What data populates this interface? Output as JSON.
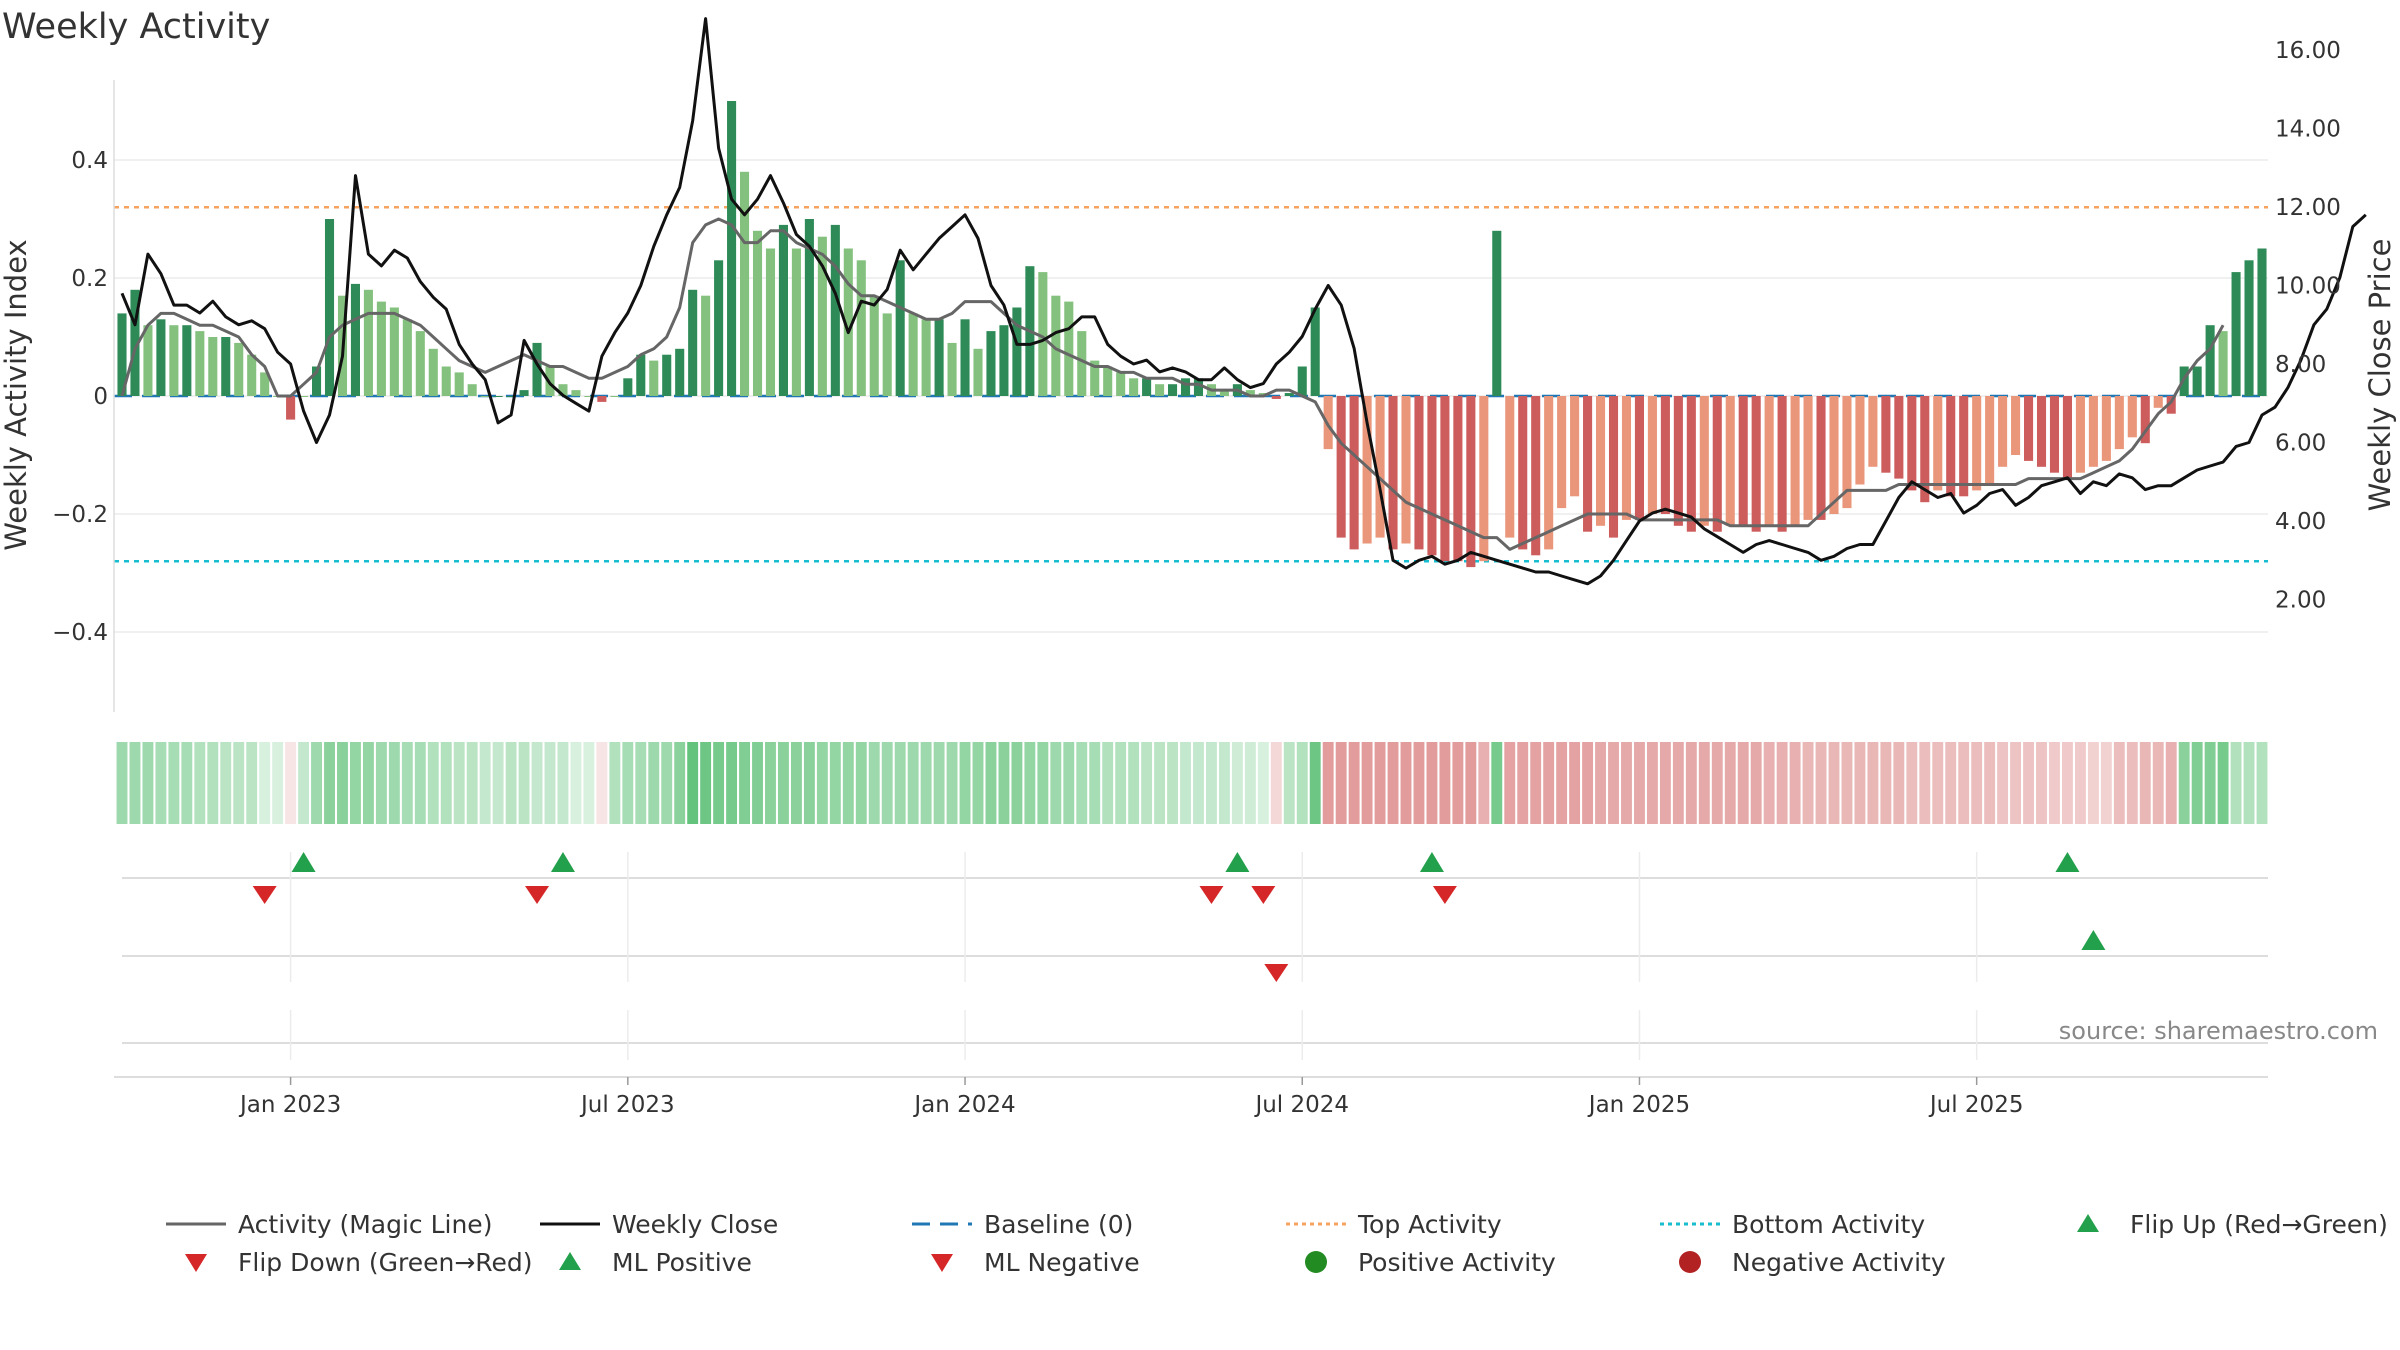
{
  "chart_data": {
    "type": "bar",
    "title": "Weekly Activity",
    "ylabel_left": "Weekly Activity Index",
    "ylabel_right": "Weekly Close Price",
    "source": "source: sharemaestro.com",
    "ylim_left": [
      -0.54,
      0.54
    ],
    "ylim_right": [
      1.2,
      17.0
    ],
    "yticks_left": [
      {
        "v": 0.4,
        "label": "0.4"
      },
      {
        "v": 0.2,
        "label": "0.2"
      },
      {
        "v": 0,
        "label": "0"
      },
      {
        "v": -0.2,
        "label": "−0.2"
      },
      {
        "v": -0.4,
        "label": "−0.4"
      }
    ],
    "yticks_right": [
      {
        "v": 16,
        "label": "16.00"
      },
      {
        "v": 14,
        "label": "14.00"
      },
      {
        "v": 12,
        "label": "12.00"
      },
      {
        "v": 10,
        "label": "10.00"
      },
      {
        "v": 8,
        "label": "8.00"
      },
      {
        "v": 6,
        "label": "6.00"
      },
      {
        "v": 4,
        "label": "4.00"
      },
      {
        "v": 2,
        "label": "2.00"
      }
    ],
    "x_ticks": [
      {
        "week": 13,
        "label": "Jan 2023"
      },
      {
        "week": 39,
        "label": "Jul 2023"
      },
      {
        "week": 65,
        "label": "Jan 2024"
      },
      {
        "week": 91,
        "label": "Jul 2024"
      },
      {
        "week": 117,
        "label": "Jan 2025"
      },
      {
        "week": 143,
        "label": "Jul 2025"
      }
    ],
    "top_activity": 0.32,
    "bottom_activity": -0.28,
    "activity": [
      0.14,
      0.18,
      0.12,
      0.13,
      0.12,
      0.12,
      0.11,
      0.1,
      0.1,
      0.09,
      0.07,
      0.04,
      0,
      -0.04,
      0,
      0.05,
      0.3,
      0.17,
      0.19,
      0.18,
      0.16,
      0.15,
      0.13,
      0.11,
      0.08,
      0.05,
      0.04,
      0.02,
      0,
      0,
      0,
      0.01,
      0.09,
      0.05,
      0.02,
      0.01,
      0,
      -0.01,
      0,
      0.03,
      0.07,
      0.06,
      0.07,
      0.08,
      0.18,
      0.17,
      0.23,
      0.5,
      0.38,
      0.28,
      0.25,
      0.29,
      0.25,
      0.3,
      0.27,
      0.29,
      0.25,
      0.23,
      0.17,
      0.14,
      0.23,
      0.14,
      0.13,
      0.13,
      0.09,
      0.13,
      0.08,
      0.11,
      0.12,
      0.15,
      0.22,
      0.21,
      0.17,
      0.16,
      0.11,
      0.06,
      0.05,
      0.04,
      0.03,
      0.03,
      0.02,
      0.02,
      0.03,
      0.03,
      0.02,
      0.01,
      0.02,
      0.01,
      0.005,
      -0.005,
      0.005,
      0.05,
      0.15,
      -0.09,
      -0.24,
      -0.26,
      -0.25,
      -0.24,
      -0.26,
      -0.25,
      -0.26,
      -0.27,
      -0.28,
      -0.28,
      -0.29,
      -0.28,
      0.28,
      -0.24,
      -0.26,
      -0.27,
      -0.26,
      -0.19,
      -0.17,
      -0.23,
      -0.22,
      -0.24,
      -0.21,
      -0.21,
      -0.2,
      -0.2,
      -0.22,
      -0.23,
      -0.22,
      -0.23,
      -0.22,
      -0.22,
      -0.23,
      -0.22,
      -0.23,
      -0.22,
      -0.21,
      -0.21,
      -0.2,
      -0.19,
      -0.15,
      -0.12,
      -0.13,
      -0.14,
      -0.16,
      -0.18,
      -0.16,
      -0.17,
      -0.17,
      -0.16,
      -0.15,
      -0.12,
      -0.1,
      -0.11,
      -0.12,
      -0.13,
      -0.14,
      -0.13,
      -0.12,
      -0.11,
      -0.09,
      -0.07,
      -0.08,
      -0.02,
      -0.03,
      0.05,
      0.05,
      0.12,
      0.11,
      0.21,
      0.23,
      0.25
    ],
    "close": [
      9.8,
      9.0,
      10.8,
      10.3,
      9.5,
      9.5,
      9.3,
      9.6,
      9.2,
      9.0,
      9.1,
      8.9,
      8.3,
      8.0,
      6.8,
      6.0,
      6.7,
      8.2,
      12.8,
      10.8,
      10.5,
      10.9,
      10.7,
      10.1,
      9.7,
      9.4,
      8.5,
      8.0,
      7.6,
      6.5,
      6.7,
      8.6,
      8.0,
      7.5,
      7.2,
      7.0,
      6.8,
      8.2,
      8.8,
      9.3,
      10.0,
      11.0,
      11.8,
      12.5,
      14.2,
      16.8,
      13.5,
      12.2,
      11.8,
      12.2,
      12.8,
      12.1,
      11.3,
      11.0,
      10.5,
      9.8,
      8.8,
      9.6,
      9.5,
      9.9,
      10.9,
      10.4,
      10.8,
      11.2,
      11.5,
      11.8,
      11.2,
      10.0,
      9.5,
      8.5,
      8.5,
      8.6,
      8.8,
      8.9,
      9.2,
      9.2,
      8.5,
      8.2,
      8.0,
      8.1,
      7.8,
      7.9,
      7.8,
      7.6,
      7.6,
      7.9,
      7.6,
      7.4,
      7.5,
      8.0,
      8.3,
      8.7,
      9.4,
      10.0,
      9.5,
      8.4,
      6.5,
      4.8,
      3.0,
      2.8,
      3.0,
      3.1,
      2.9,
      3.0,
      3.2,
      3.1,
      3.0,
      2.9,
      2.8,
      2.7,
      2.7,
      2.6,
      2.5,
      2.4,
      2.6,
      3.0,
      3.5,
      4.0,
      4.2,
      4.3,
      4.2,
      4.1,
      3.8,
      3.6,
      3.4,
      3.2,
      3.4,
      3.5,
      3.4,
      3.3,
      3.2,
      3.0,
      3.1,
      3.3,
      3.4,
      3.4,
      4.0,
      4.6,
      5.0,
      4.8,
      4.6,
      4.7,
      4.2,
      4.4,
      4.7,
      4.8,
      4.4,
      4.6,
      4.9,
      5.0,
      5.1,
      4.7,
      5.0,
      4.9,
      5.2,
      5.1,
      4.8,
      4.9,
      4.9,
      5.1,
      5.3,
      5.4,
      5.5,
      5.9,
      6.0,
      6.7,
      6.9,
      7.4,
      8.1,
      9.0,
      9.4,
      10.2,
      11.5,
      11.8
    ],
    "magic_line": [
      0.0,
      0.08,
      0.12,
      0.14,
      0.14,
      0.13,
      0.12,
      0.12,
      0.11,
      0.1,
      0.07,
      0.05,
      0.0,
      0.0,
      0.02,
      0.04,
      0.1,
      0.12,
      0.13,
      0.14,
      0.14,
      0.14,
      0.13,
      0.12,
      0.1,
      0.08,
      0.06,
      0.05,
      0.04,
      0.05,
      0.06,
      0.07,
      0.06,
      0.05,
      0.05,
      0.04,
      0.03,
      0.03,
      0.04,
      0.05,
      0.07,
      0.08,
      0.1,
      0.15,
      0.26,
      0.29,
      0.3,
      0.29,
      0.26,
      0.26,
      0.28,
      0.28,
      0.26,
      0.25,
      0.24,
      0.22,
      0.19,
      0.17,
      0.17,
      0.16,
      0.15,
      0.14,
      0.13,
      0.13,
      0.14,
      0.16,
      0.16,
      0.16,
      0.14,
      0.12,
      0.11,
      0.1,
      0.08,
      0.07,
      0.06,
      0.05,
      0.05,
      0.04,
      0.04,
      0.03,
      0.03,
      0.03,
      0.02,
      0.02,
      0.01,
      0.01,
      0.01,
      0.0,
      0.0,
      0.01,
      0.01,
      0.0,
      -0.01,
      -0.05,
      -0.08,
      -0.1,
      -0.12,
      -0.14,
      -0.16,
      -0.18,
      -0.19,
      -0.2,
      -0.21,
      -0.22,
      -0.23,
      -0.24,
      -0.24,
      -0.26,
      -0.25,
      -0.24,
      -0.23,
      -0.22,
      -0.21,
      -0.2,
      -0.2,
      -0.2,
      -0.2,
      -0.21,
      -0.21,
      -0.21,
      -0.21,
      -0.21,
      -0.21,
      -0.21,
      -0.22,
      -0.22,
      -0.22,
      -0.22,
      -0.22,
      -0.22,
      -0.22,
      -0.2,
      -0.18,
      -0.16,
      -0.16,
      -0.16,
      -0.16,
      -0.15,
      -0.15,
      -0.15,
      -0.15,
      -0.15,
      -0.15,
      -0.15,
      -0.15,
      -0.15,
      -0.15,
      -0.14,
      -0.14,
      -0.14,
      -0.14,
      -0.14,
      -0.13,
      -0.12,
      -0.11,
      -0.09,
      -0.06,
      -0.03,
      -0.01,
      0.03,
      0.06,
      0.08,
      0.12
    ],
    "regime_alpha": [
      0.5,
      0.5,
      0.5,
      0.45,
      0.45,
      0.45,
      0.4,
      0.4,
      0.35,
      0.35,
      0.35,
      0.2,
      0.2,
      0.2,
      0.3,
      0.5,
      0.6,
      0.6,
      0.55,
      0.55,
      0.5,
      0.5,
      0.45,
      0.45,
      0.4,
      0.4,
      0.35,
      0.35,
      0.3,
      0.3,
      0.35,
      0.35,
      0.3,
      0.3,
      0.3,
      0.2,
      0.2,
      0.2,
      0.4,
      0.45,
      0.45,
      0.5,
      0.5,
      0.6,
      0.8,
      0.75,
      0.7,
      0.7,
      0.65,
      0.65,
      0.6,
      0.6,
      0.6,
      0.6,
      0.55,
      0.55,
      0.55,
      0.55,
      0.5,
      0.5,
      0.5,
      0.5,
      0.5,
      0.5,
      0.5,
      0.55,
      0.55,
      0.6,
      0.6,
      0.6,
      0.55,
      0.55,
      0.5,
      0.5,
      0.45,
      0.45,
      0.4,
      0.4,
      0.4,
      0.35,
      0.35,
      0.35,
      0.3,
      0.3,
      0.3,
      0.3,
      0.25,
      0.25,
      0.2,
      0.3,
      0.35,
      0.4,
      0.75,
      0.75,
      0.75,
      0.75,
      0.75,
      0.75,
      0.75,
      0.75,
      0.75,
      0.75,
      0.75,
      0.75,
      0.75,
      0.6,
      0.7,
      0.7,
      0.7,
      0.7,
      0.7,
      0.7,
      0.7,
      0.7,
      0.65,
      0.65,
      0.65,
      0.65,
      0.65,
      0.65,
      0.65,
      0.65,
      0.65,
      0.65,
      0.65,
      0.65,
      0.65,
      0.6,
      0.6,
      0.6,
      0.55,
      0.55,
      0.55,
      0.55,
      0.55,
      0.55,
      0.55,
      0.55,
      0.5,
      0.5,
      0.5,
      0.5,
      0.5,
      0.5,
      0.5,
      0.45,
      0.45,
      0.45,
      0.45,
      0.4,
      0.4,
      0.4,
      0.35,
      0.35,
      0.5,
      0.5,
      0.55,
      0.55,
      0.6,
      0.6,
      0.65,
      0.65,
      0.7
    ],
    "flip_up_row1": [
      14,
      34,
      86,
      101,
      150
    ],
    "flip_down_row1": [
      11,
      32,
      84,
      88,
      102
    ],
    "ml_positive_row2": [
      152
    ],
    "ml_negative_row2": [
      89
    ],
    "colors": {
      "pos_strong": "#2e8b57",
      "pos_light": "#85c17e",
      "neg_strong": "#cd5c5c",
      "neg_light": "#e9967a",
      "magic_line": "#666666",
      "close": "#111111",
      "baseline": "#1f77b4",
      "top": "#f4a460",
      "bottom": "#17becf",
      "marker_green": "#22a04b",
      "marker_red": "#d62728",
      "dot_green": "#228b22",
      "dot_red": "#b22222",
      "regime_green": "#3cb35a",
      "regime_red": "#d97b7b"
    },
    "legend": [
      {
        "key": "magic_line",
        "label": "Activity (Magic Line)"
      },
      {
        "key": "close",
        "label": "Weekly Close"
      },
      {
        "key": "baseline",
        "label": "Baseline (0)"
      },
      {
        "key": "top",
        "label": "Top Activity"
      },
      {
        "key": "bottom",
        "label": "Bottom Activity"
      },
      {
        "key": "flip_up",
        "label": "Flip Up (Red→Green)"
      },
      {
        "key": "flip_down",
        "label": "Flip Down (Green→Red)"
      },
      {
        "key": "ml_positive",
        "label": "ML Positive"
      },
      {
        "key": "ml_negative",
        "label": "ML Negative"
      },
      {
        "key": "positive_activity",
        "label": "Positive Activity"
      },
      {
        "key": "negative_activity",
        "label": "Negative Activity"
      }
    ]
  }
}
